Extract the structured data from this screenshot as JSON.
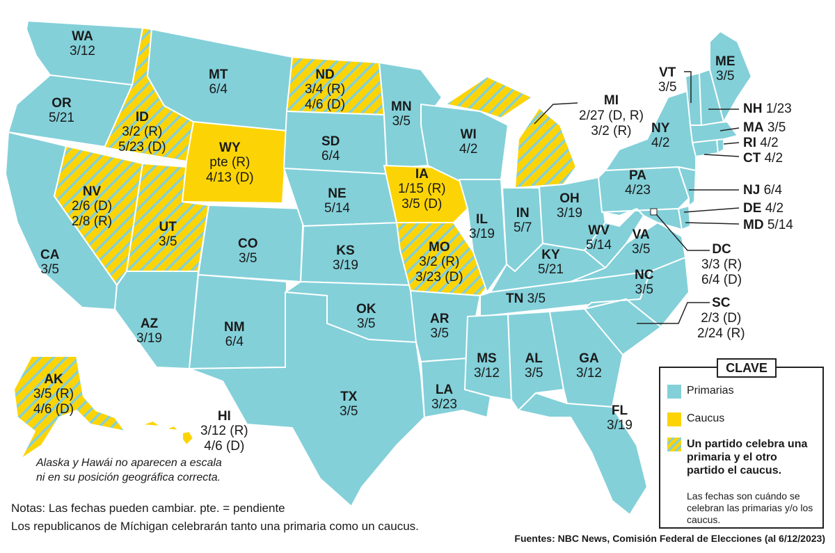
{
  "colors": {
    "primary": "#83d0d9",
    "caucus": "#fcd406",
    "border": "#ffffff",
    "leader": "#222222"
  },
  "states": {
    "WA": {
      "abbr": "WA",
      "date": "3/12"
    },
    "OR": {
      "abbr": "OR",
      "date": "5/21"
    },
    "CA": {
      "abbr": "CA",
      "date": "3/5"
    },
    "ID": {
      "abbr": "ID",
      "date": "3/2 (R)",
      "date2": "5/23 (D)"
    },
    "NV": {
      "abbr": "NV",
      "date": "2/6 (D)",
      "date2": "2/8 (R)"
    },
    "MT": {
      "abbr": "MT",
      "date": "6/4"
    },
    "WY": {
      "abbr": "WY",
      "date": "pte (R)",
      "date2": "4/13 (D)"
    },
    "UT": {
      "abbr": "UT",
      "date": "3/5"
    },
    "AZ": {
      "abbr": "AZ",
      "date": "3/19"
    },
    "CO": {
      "abbr": "CO",
      "date": "3/5"
    },
    "NM": {
      "abbr": "NM",
      "date": "6/4"
    },
    "ND": {
      "abbr": "ND",
      "date": "3/4 (R)",
      "date2": "4/6 (D)"
    },
    "SD": {
      "abbr": "SD",
      "date": "6/4"
    },
    "NE": {
      "abbr": "NE",
      "date": "5/14"
    },
    "KS": {
      "abbr": "KS",
      "date": "3/19"
    },
    "OK": {
      "abbr": "OK",
      "date": "3/5"
    },
    "TX": {
      "abbr": "TX",
      "date": "3/5"
    },
    "MN": {
      "abbr": "MN",
      "date": "3/5"
    },
    "IA": {
      "abbr": "IA",
      "date": "1/15 (R)",
      "date2": "3/5 (D)"
    },
    "MO": {
      "abbr": "MO",
      "date": "3/2 (R)",
      "date2": "3/23 (D)"
    },
    "AR": {
      "abbr": "AR",
      "date": "3/5"
    },
    "LA": {
      "abbr": "LA",
      "date": "3/23"
    },
    "WI": {
      "abbr": "WI",
      "date": "4/2"
    },
    "IL": {
      "abbr": "IL",
      "date": "3/19"
    },
    "MS": {
      "abbr": "MS",
      "date": "3/12"
    },
    "MI": {
      "abbr": "MI",
      "date": "2/27 (D, R)",
      "date2": "3/2 (R)"
    },
    "IN": {
      "abbr": "IN",
      "date": "5/7"
    },
    "KY": {
      "abbr": "KY",
      "date": "5/21"
    },
    "TN": {
      "abbr": "TN",
      "date": "3/5"
    },
    "AL": {
      "abbr": "AL",
      "date": "3/5"
    },
    "GA": {
      "abbr": "GA",
      "date": "3/12"
    },
    "FL": {
      "abbr": "FL",
      "date": "3/19"
    },
    "OH": {
      "abbr": "OH",
      "date": "3/19"
    },
    "WV": {
      "abbr": "WV",
      "date": "5/14"
    },
    "VA": {
      "abbr": "VA",
      "date": "3/5"
    },
    "NC": {
      "abbr": "NC",
      "date": "3/5"
    },
    "SC": {
      "abbr": "SC",
      "date": "2/3 (D)",
      "date2": "2/24 (R)"
    },
    "PA": {
      "abbr": "PA",
      "date": "4/23"
    },
    "NY": {
      "abbr": "NY",
      "date": "4/2"
    },
    "VT": {
      "abbr": "VT",
      "date": "3/5"
    },
    "ME": {
      "abbr": "ME",
      "date": "3/5"
    },
    "NH": {
      "abbr": "NH",
      "date": "1/23"
    },
    "MA": {
      "abbr": "MA",
      "date": "3/5"
    },
    "RI": {
      "abbr": "RI",
      "date": "4/2"
    },
    "CT": {
      "abbr": "CT",
      "date": "4/2"
    },
    "NJ": {
      "abbr": "NJ",
      "date": "6/4"
    },
    "DE": {
      "abbr": "DE",
      "date": "4/2"
    },
    "MD": {
      "abbr": "MD",
      "date": "5/14"
    },
    "DC": {
      "abbr": "DC",
      "date": "3/3 (R)",
      "date2": "6/4 (D)"
    },
    "AK": {
      "abbr": "AK",
      "date": "3/5 (R)",
      "date2": "4/6 (D)"
    },
    "HI": {
      "abbr": "HI",
      "date": "3/12 (R)",
      "date2": "4/6 (D)"
    }
  },
  "inset_note": [
    "Alaska y Hawái no aparecen a escala",
    "ni en su posición geográfica correcta."
  ],
  "notes": [
    "Notas: Las fechas pueden cambiar.  pte. = pendiente",
    "Los republicanos de Míchigan celebrarán tanto una primaria como un caucus."
  ],
  "sources": "Fuentes: NBC News, Comisión Federal de Elecciones (al 6/12/2023)",
  "key": {
    "title": "CLAVE",
    "primary": "Primarias",
    "caucus": "Caucus",
    "mixed": "Un partido celebra una primaria y el otro partido el caucus.",
    "description": "Las fechas son cuándo se celebran las primarias y/o los caucus."
  }
}
